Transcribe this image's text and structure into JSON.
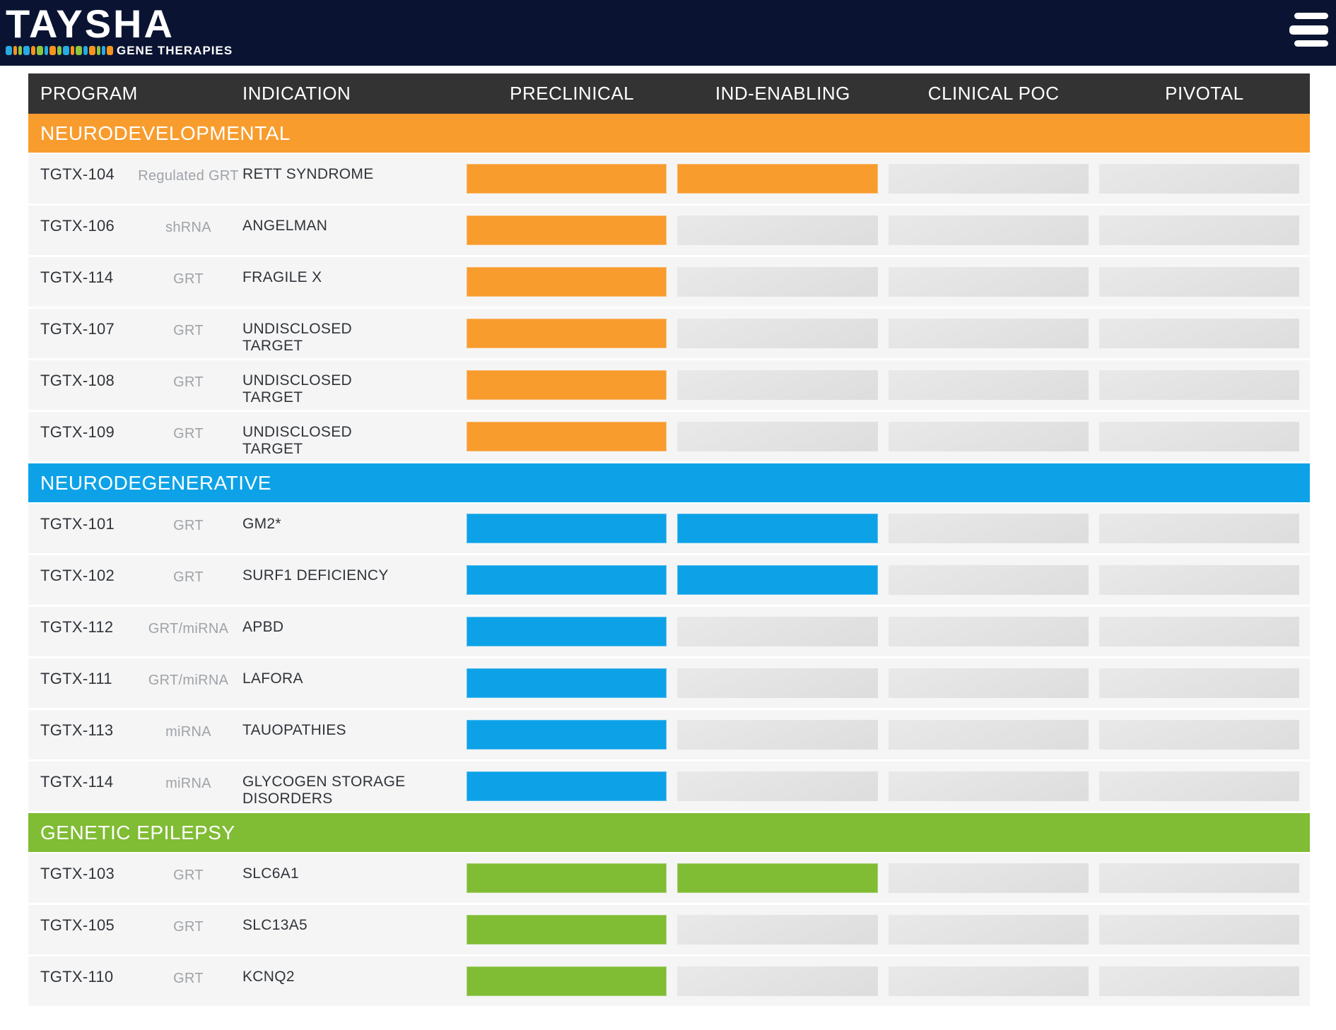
{
  "banner": {
    "logo_title": "TAYSHA",
    "logo_subtitle": "GENE THERAPIES",
    "logo_bar_colors": [
      {
        "color": "#29abe2",
        "w": 9
      },
      {
        "color": "#f7941e",
        "w": 5
      },
      {
        "color": "#8cc63f",
        "w": 5
      },
      {
        "color": "#29abe2",
        "w": 9
      },
      {
        "color": "#f7941e",
        "w": 6
      },
      {
        "color": "#8cc63f",
        "w": 9
      },
      {
        "color": "#29abe2",
        "w": 5
      },
      {
        "color": "#f7941e",
        "w": 9
      },
      {
        "color": "#8cc63f",
        "w": 6
      },
      {
        "color": "#29abe2",
        "w": 9
      },
      {
        "color": "#f7941e",
        "w": 5
      },
      {
        "color": "#8cc63f",
        "w": 9
      },
      {
        "color": "#29abe2",
        "w": 6
      },
      {
        "color": "#f7941e",
        "w": 9
      },
      {
        "color": "#8cc63f",
        "w": 5
      },
      {
        "color": "#29abe2",
        "w": 5
      },
      {
        "color": "#f7941e",
        "w": 9
      }
    ],
    "colors": {
      "banner_bg": "#0a1432"
    }
  },
  "table": {
    "columns": [
      "PROGRAM",
      "INDICATION",
      "PRECLINICAL",
      "IND-ENABLING",
      "CLINICAL POC",
      "PIVOTAL"
    ],
    "header_bg": "#333333",
    "row_bg": "#f5f5f5",
    "empty_bar_color": "#e2e2e2"
  },
  "sections": [
    {
      "name": "NEURODEVELOPMENTAL",
      "color": "#f89c2e",
      "rows": [
        {
          "program": "TGTX-104",
          "tech": "Regulated GRT",
          "indication": "RETT SYNDROME",
          "stages": [
            true,
            true,
            false,
            false
          ]
        },
        {
          "program": "TGTX-106",
          "tech": "shRNA",
          "indication": "ANGELMAN",
          "stages": [
            true,
            false,
            false,
            false
          ]
        },
        {
          "program": "TGTX-114",
          "tech": "GRT",
          "indication": "FRAGILE X",
          "stages": [
            true,
            false,
            false,
            false
          ]
        },
        {
          "program": "TGTX-107",
          "tech": "GRT",
          "indication": "UNDISCLOSED TARGET",
          "stages": [
            true,
            false,
            false,
            false
          ]
        },
        {
          "program": "TGTX-108",
          "tech": "GRT",
          "indication": "UNDISCLOSED TARGET",
          "stages": [
            true,
            false,
            false,
            false
          ]
        },
        {
          "program": "TGTX-109",
          "tech": "GRT",
          "indication": "UNDISCLOSED TARGET",
          "stages": [
            true,
            false,
            false,
            false
          ]
        }
      ]
    },
    {
      "name": "NEURODEGENERATIVE",
      "color": "#0da2e7",
      "rows": [
        {
          "program": "TGTX-101",
          "tech": "GRT",
          "indication": "GM2*",
          "stages": [
            true,
            true,
            false,
            false
          ]
        },
        {
          "program": "TGTX-102",
          "tech": "GRT",
          "indication": "SURF1 DEFICIENCY",
          "stages": [
            true,
            true,
            false,
            false
          ]
        },
        {
          "program": "TGTX-112",
          "tech": "GRT/miRNA",
          "indication": "APBD",
          "stages": [
            true,
            false,
            false,
            false
          ]
        },
        {
          "program": "TGTX-111",
          "tech": "GRT/miRNA",
          "indication": "LAFORA",
          "stages": [
            true,
            false,
            false,
            false
          ]
        },
        {
          "program": "TGTX-113",
          "tech": "miRNA",
          "indication": "TAUOPATHIES",
          "stages": [
            true,
            false,
            false,
            false
          ]
        },
        {
          "program": "TGTX-114",
          "tech": "miRNA",
          "indication": "GLYCOGEN STORAGE DISORDERS",
          "stages": [
            true,
            false,
            false,
            false
          ]
        }
      ]
    },
    {
      "name": "GENETIC EPILEPSY",
      "color": "#80bc34",
      "rows": [
        {
          "program": "TGTX-103",
          "tech": "GRT",
          "indication": "SLC6A1",
          "stages": [
            true,
            true,
            false,
            false
          ]
        },
        {
          "program": "TGTX-105",
          "tech": "GRT",
          "indication": "SLC13A5",
          "stages": [
            true,
            false,
            false,
            false
          ]
        },
        {
          "program": "TGTX-110",
          "tech": "GRT",
          "indication": "KCNQ2",
          "stages": [
            true,
            false,
            false,
            false
          ]
        }
      ]
    }
  ]
}
